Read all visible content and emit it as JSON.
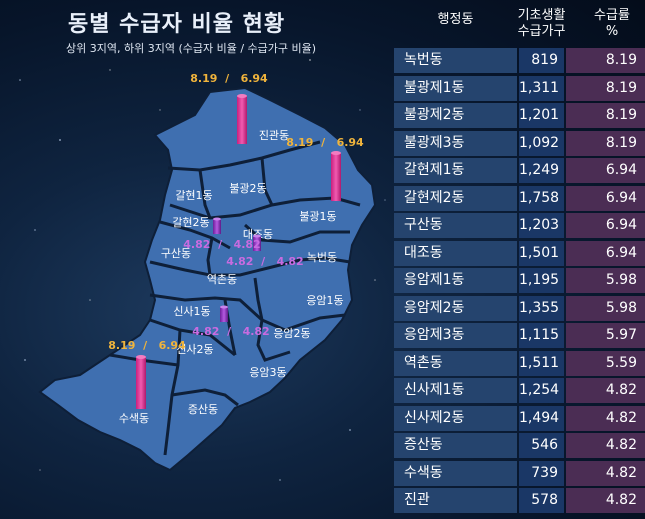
{
  "title": "동별 수급자 비율 현황",
  "subtitle": "상위 3지역, 하위 3지역 (수급자 비율  /   수급가구 비율)",
  "table": {
    "headers": {
      "district": "행정동",
      "households_line1": "기초생활",
      "households_line2": "수급가구",
      "rate_line1": "수급률",
      "rate_line2": "%"
    },
    "rows": [
      {
        "name": "녹번동",
        "households": "819",
        "rate": "8.19"
      },
      {
        "name": "불광제1동",
        "households": "1,311",
        "rate": "8.19"
      },
      {
        "name": "불광제2동",
        "households": "1,201",
        "rate": "8.19"
      },
      {
        "name": "불광제3동",
        "households": "1,092",
        "rate": "8.19"
      },
      {
        "name": "갈현제1동",
        "households": "1,249",
        "rate": "6.94"
      },
      {
        "name": "갈현제2동",
        "households": "1,758",
        "rate": "6.94"
      },
      {
        "name": "구산동",
        "households": "1,203",
        "rate": "6.94"
      },
      {
        "name": "대조동",
        "households": "1,501",
        "rate": "6.94"
      },
      {
        "name": "응암제1동",
        "households": "1,195",
        "rate": "5.98"
      },
      {
        "name": "응암제2동",
        "households": "1,355",
        "rate": "5.98"
      },
      {
        "name": "응암제3동",
        "households": "1,115",
        "rate": "5.97"
      },
      {
        "name": "역촌동",
        "households": "1,511",
        "rate": "5.59"
      },
      {
        "name": "신사제1동",
        "households": "1,254",
        "rate": "4.82"
      },
      {
        "name": "신사제2동",
        "households": "1,494",
        "rate": "4.82"
      },
      {
        "name": "증산동",
        "households": "546",
        "rate": "4.82"
      },
      {
        "name": "수색동",
        "households": "739",
        "rate": "4.82"
      },
      {
        "name": "진관",
        "households": "578",
        "rate": "4.82"
      }
    ]
  },
  "map": {
    "district_labels": [
      "진관동",
      "갈현1동",
      "불광2동",
      "갈현2동",
      "대조동",
      "불광1동",
      "구산동",
      "녹번동",
      "역촌동",
      "응암1동",
      "신사1동",
      "응암2동",
      "신사2동",
      "응암3동",
      "수색동",
      "증산동"
    ],
    "value_labels": [
      {
        "text": "8.19  /   6.94",
        "tier": "top"
      },
      {
        "text": "8.19  /   6.94",
        "tier": "top"
      },
      {
        "text": "8.19  /   6.94",
        "tier": "top"
      },
      {
        "text": "4.82  /   4.82",
        "tier": "bottom"
      },
      {
        "text": "4.82  /   4.82",
        "tier": "bottom"
      },
      {
        "text": "4.82  /   4.82",
        "tier": "bottom"
      }
    ],
    "colors": {
      "district_fill": "#3f6fb0",
      "border": "#0e1f38",
      "top_tier": "#f0b43c",
      "bottom_tier": "#c86be0",
      "bar_top": "#e8379a",
      "bar_bottom": "#9a35c9"
    }
  }
}
